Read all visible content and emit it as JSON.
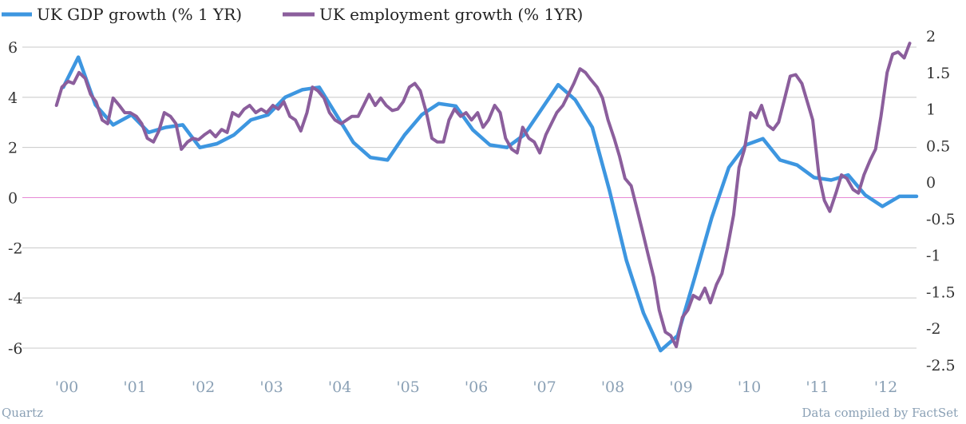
{
  "chart_data": {
    "type": "line",
    "title": "",
    "xlabel": "",
    "ylabel_left": "",
    "ylabel_right": "",
    "legend_position": "top-left",
    "grid": true,
    "x_range": [
      1999.5,
      2012.6
    ],
    "left_axis": {
      "range": [
        -7,
        6.5
      ],
      "ticks": [
        6,
        4,
        2,
        0,
        -2,
        -4,
        -6
      ],
      "tick_labels": [
        "6",
        "4",
        "2",
        "0",
        "-2",
        "-4",
        "-6"
      ]
    },
    "right_axis": {
      "range": [
        -2.55,
        2.16
      ],
      "ticks": [
        2,
        1.5,
        1,
        0.5,
        0,
        -0.5,
        -1,
        -1.5,
        -2,
        -2.5
      ],
      "tick_labels": [
        "2",
        "1.5",
        "1",
        "0.5",
        "0",
        "-0.5",
        "-1",
        "-1.5",
        "-2",
        "-2.5"
      ]
    },
    "x_tick_labels": [
      "'00",
      "'01",
      "'02",
      "'03",
      "'04",
      "'05",
      "'06",
      "'07",
      "'08",
      "'09",
      "'10",
      "'11",
      "'12"
    ],
    "x_tick_years": [
      2000,
      2001,
      2002,
      2003,
      2004,
      2005,
      2006,
      2007,
      2008,
      2009,
      2010,
      2011,
      2012
    ],
    "zero_line_color": "#e68ad6",
    "grid_color": "#c8c8c8",
    "series": [
      {
        "name": "UK GDP growth (% 1 YR)",
        "axis": "left",
        "color": "#3d96e0",
        "points": [
          [
            2000.1,
            4.4
          ],
          [
            2000.32,
            5.6
          ],
          [
            2000.57,
            3.7
          ],
          [
            2000.83,
            2.9
          ],
          [
            2001.1,
            3.3
          ],
          [
            2001.35,
            2.6
          ],
          [
            2001.6,
            2.8
          ],
          [
            2001.85,
            2.9
          ],
          [
            2002.1,
            2.0
          ],
          [
            2002.35,
            2.15
          ],
          [
            2002.6,
            2.5
          ],
          [
            2002.85,
            3.1
          ],
          [
            2003.1,
            3.3
          ],
          [
            2003.35,
            4.0
          ],
          [
            2003.6,
            4.3
          ],
          [
            2003.85,
            4.4
          ],
          [
            2004.1,
            3.3
          ],
          [
            2004.35,
            2.2
          ],
          [
            2004.6,
            1.6
          ],
          [
            2004.85,
            1.5
          ],
          [
            2005.1,
            2.5
          ],
          [
            2005.35,
            3.3
          ],
          [
            2005.6,
            3.75
          ],
          [
            2005.85,
            3.65
          ],
          [
            2006.1,
            2.7
          ],
          [
            2006.35,
            2.1
          ],
          [
            2006.6,
            2.0
          ],
          [
            2006.85,
            2.5
          ],
          [
            2007.1,
            3.5
          ],
          [
            2007.35,
            4.5
          ],
          [
            2007.6,
            3.9
          ],
          [
            2007.85,
            2.8
          ],
          [
            2008.1,
            0.3
          ],
          [
            2008.35,
            -2.5
          ],
          [
            2008.6,
            -4.6
          ],
          [
            2008.85,
            -6.1
          ],
          [
            2009.1,
            -5.5
          ],
          [
            2009.35,
            -3.2
          ],
          [
            2009.6,
            -0.8
          ],
          [
            2009.85,
            1.2
          ],
          [
            2010.1,
            2.1
          ],
          [
            2010.35,
            2.35
          ],
          [
            2010.6,
            1.5
          ],
          [
            2010.85,
            1.3
          ],
          [
            2011.1,
            0.8
          ],
          [
            2011.35,
            0.7
          ],
          [
            2011.6,
            0.9
          ],
          [
            2011.85,
            0.1
          ],
          [
            2012.1,
            -0.35
          ],
          [
            2012.35,
            0.05
          ],
          [
            2012.6,
            0.05
          ]
        ]
      },
      {
        "name": "UK employment growth (% 1YR)",
        "axis": "right",
        "color": "#8b5e9c",
        "points": [
          [
            2000.0,
            1.05
          ],
          [
            2000.08,
            1.3
          ],
          [
            2000.17,
            1.38
          ],
          [
            2000.25,
            1.35
          ],
          [
            2000.33,
            1.5
          ],
          [
            2000.42,
            1.42
          ],
          [
            2000.5,
            1.2
          ],
          [
            2000.58,
            1.1
          ],
          [
            2000.67,
            0.85
          ],
          [
            2000.75,
            0.8
          ],
          [
            2000.83,
            1.15
          ],
          [
            2000.92,
            1.05
          ],
          [
            2001.0,
            0.95
          ],
          [
            2001.08,
            0.95
          ],
          [
            2001.17,
            0.9
          ],
          [
            2001.25,
            0.8
          ],
          [
            2001.33,
            0.6
          ],
          [
            2001.42,
            0.55
          ],
          [
            2001.5,
            0.7
          ],
          [
            2001.58,
            0.95
          ],
          [
            2001.67,
            0.9
          ],
          [
            2001.75,
            0.8
          ],
          [
            2001.83,
            0.45
          ],
          [
            2001.92,
            0.55
          ],
          [
            2002.0,
            0.6
          ],
          [
            2002.08,
            0.58
          ],
          [
            2002.17,
            0.65
          ],
          [
            2002.25,
            0.7
          ],
          [
            2002.33,
            0.62
          ],
          [
            2002.42,
            0.72
          ],
          [
            2002.5,
            0.68
          ],
          [
            2002.58,
            0.95
          ],
          [
            2002.67,
            0.9
          ],
          [
            2002.75,
            1.0
          ],
          [
            2002.83,
            1.05
          ],
          [
            2002.92,
            0.95
          ],
          [
            2003.0,
            1.0
          ],
          [
            2003.08,
            0.95
          ],
          [
            2003.17,
            1.05
          ],
          [
            2003.25,
            1.0
          ],
          [
            2003.33,
            1.1
          ],
          [
            2003.42,
            0.9
          ],
          [
            2003.5,
            0.85
          ],
          [
            2003.58,
            0.7
          ],
          [
            2003.67,
            0.95
          ],
          [
            2003.75,
            1.3
          ],
          [
            2003.83,
            1.25
          ],
          [
            2003.92,
            1.15
          ],
          [
            2004.0,
            0.95
          ],
          [
            2004.08,
            0.85
          ],
          [
            2004.17,
            0.8
          ],
          [
            2004.25,
            0.85
          ],
          [
            2004.33,
            0.9
          ],
          [
            2004.42,
            0.9
          ],
          [
            2004.5,
            1.05
          ],
          [
            2004.58,
            1.2
          ],
          [
            2004.67,
            1.05
          ],
          [
            2004.75,
            1.15
          ],
          [
            2004.83,
            1.05
          ],
          [
            2004.92,
            0.98
          ],
          [
            2005.0,
            1.0
          ],
          [
            2005.08,
            1.1
          ],
          [
            2005.17,
            1.3
          ],
          [
            2005.25,
            1.35
          ],
          [
            2005.33,
            1.25
          ],
          [
            2005.42,
            0.95
          ],
          [
            2005.5,
            0.6
          ],
          [
            2005.58,
            0.55
          ],
          [
            2005.67,
            0.55
          ],
          [
            2005.75,
            0.85
          ],
          [
            2005.83,
            1.0
          ],
          [
            2005.92,
            0.9
          ],
          [
            2006.0,
            0.95
          ],
          [
            2006.08,
            0.85
          ],
          [
            2006.17,
            0.95
          ],
          [
            2006.25,
            0.75
          ],
          [
            2006.33,
            0.85
          ],
          [
            2006.42,
            1.05
          ],
          [
            2006.5,
            0.95
          ],
          [
            2006.58,
            0.6
          ],
          [
            2006.67,
            0.45
          ],
          [
            2006.75,
            0.4
          ],
          [
            2006.83,
            0.75
          ],
          [
            2006.92,
            0.6
          ],
          [
            2007.0,
            0.55
          ],
          [
            2007.08,
            0.4
          ],
          [
            2007.17,
            0.65
          ],
          [
            2007.25,
            0.8
          ],
          [
            2007.33,
            0.95
          ],
          [
            2007.42,
            1.05
          ],
          [
            2007.5,
            1.2
          ],
          [
            2007.58,
            1.35
          ],
          [
            2007.67,
            1.55
          ],
          [
            2007.75,
            1.5
          ],
          [
            2007.83,
            1.4
          ],
          [
            2007.92,
            1.3
          ],
          [
            2008.0,
            1.15
          ],
          [
            2008.08,
            0.85
          ],
          [
            2008.17,
            0.6
          ],
          [
            2008.25,
            0.35
          ],
          [
            2008.33,
            0.05
          ],
          [
            2008.42,
            -0.05
          ],
          [
            2008.5,
            -0.35
          ],
          [
            2008.58,
            -0.65
          ],
          [
            2008.67,
            -1.0
          ],
          [
            2008.75,
            -1.3
          ],
          [
            2008.83,
            -1.75
          ],
          [
            2008.92,
            -2.05
          ],
          [
            2009.0,
            -2.1
          ],
          [
            2009.08,
            -2.25
          ],
          [
            2009.17,
            -1.85
          ],
          [
            2009.25,
            -1.75
          ],
          [
            2009.33,
            -1.55
          ],
          [
            2009.42,
            -1.6
          ],
          [
            2009.5,
            -1.45
          ],
          [
            2009.58,
            -1.65
          ],
          [
            2009.67,
            -1.4
          ],
          [
            2009.75,
            -1.25
          ],
          [
            2009.83,
            -0.9
          ],
          [
            2009.92,
            -0.45
          ],
          [
            2010.0,
            0.2
          ],
          [
            2010.08,
            0.45
          ],
          [
            2010.17,
            0.95
          ],
          [
            2010.25,
            0.88
          ],
          [
            2010.33,
            1.05
          ],
          [
            2010.42,
            0.78
          ],
          [
            2010.5,
            0.72
          ],
          [
            2010.58,
            0.82
          ],
          [
            2010.67,
            1.15
          ],
          [
            2010.75,
            1.45
          ],
          [
            2010.83,
            1.47
          ],
          [
            2010.92,
            1.35
          ],
          [
            2011.0,
            1.1
          ],
          [
            2011.08,
            0.85
          ],
          [
            2011.17,
            0.1
          ],
          [
            2011.25,
            -0.25
          ],
          [
            2011.33,
            -0.4
          ],
          [
            2011.42,
            -0.15
          ],
          [
            2011.5,
            0.1
          ],
          [
            2011.58,
            0.05
          ],
          [
            2011.67,
            -0.1
          ],
          [
            2011.75,
            -0.15
          ],
          [
            2011.83,
            0.1
          ],
          [
            2011.92,
            0.3
          ],
          [
            2012.0,
            0.45
          ],
          [
            2012.08,
            0.9
          ],
          [
            2012.17,
            1.5
          ],
          [
            2012.25,
            1.75
          ],
          [
            2012.33,
            1.78
          ],
          [
            2012.42,
            1.7
          ],
          [
            2012.5,
            1.9
          ]
        ]
      }
    ]
  },
  "footer": {
    "source_left": "Quartz",
    "source_right": "Data compiled by FactSet"
  }
}
